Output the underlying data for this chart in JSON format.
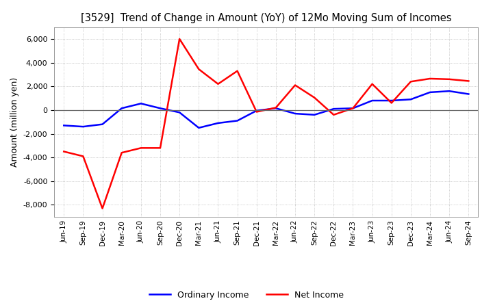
{
  "title": "[3529]  Trend of Change in Amount (YoY) of 12Mo Moving Sum of Incomes",
  "ylabel": "Amount (million yen)",
  "ylim": [
    -9000,
    7000
  ],
  "yticks": [
    -8000,
    -6000,
    -4000,
    -2000,
    0,
    2000,
    4000,
    6000
  ],
  "background_color": "#ffffff",
  "grid_color": "#aaaaaa",
  "x_labels": [
    "Jun-19",
    "Sep-19",
    "Dec-19",
    "Mar-20",
    "Jun-20",
    "Sep-20",
    "Dec-20",
    "Mar-21",
    "Jun-21",
    "Sep-21",
    "Dec-21",
    "Mar-22",
    "Jun-22",
    "Sep-22",
    "Dec-22",
    "Mar-23",
    "Jun-23",
    "Sep-23",
    "Dec-23",
    "Mar-24",
    "Jun-24",
    "Sep-24"
  ],
  "ordinary_income": [
    -1300,
    -1400,
    -1200,
    150,
    550,
    150,
    -200,
    -1500,
    -1100,
    -900,
    -50,
    150,
    -300,
    -400,
    100,
    150,
    800,
    800,
    900,
    1500,
    1600,
    1350
  ],
  "net_income": [
    -3500,
    -3900,
    -8300,
    -3600,
    -3200,
    -3200,
    6000,
    3450,
    2200,
    3300,
    -150,
    200,
    2100,
    1050,
    -400,
    150,
    2200,
    600,
    2400,
    2650,
    2600,
    2450
  ],
  "ordinary_color": "#0000ff",
  "net_color": "#ff0000",
  "line_width": 1.8
}
